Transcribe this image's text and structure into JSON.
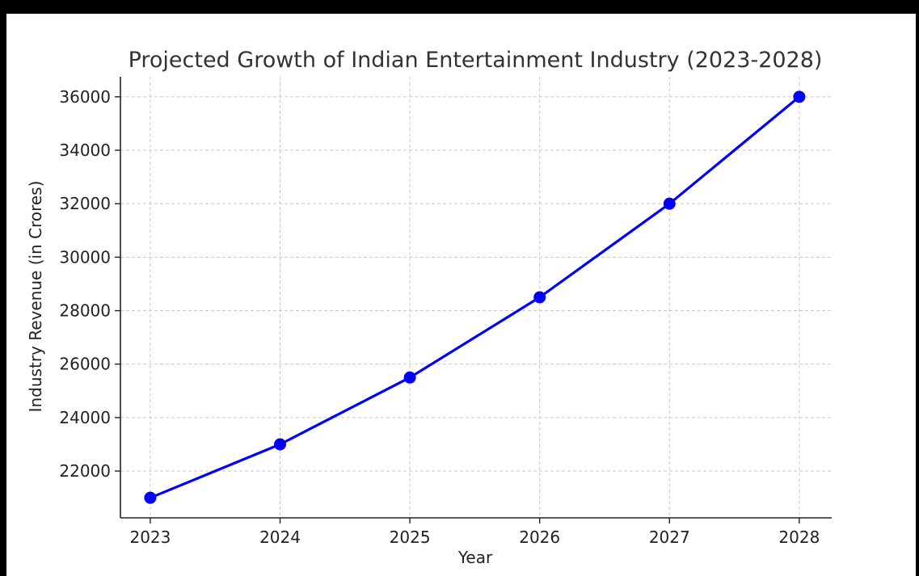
{
  "chart_data": {
    "type": "line",
    "title": "Projected Growth of Indian Entertainment Industry (2023-2028)",
    "xlabel": "Year",
    "ylabel": "Industry Revenue (in Crores)",
    "x": [
      2023,
      2024,
      2025,
      2026,
      2027,
      2028
    ],
    "series": [
      {
        "values": [
          21000,
          23000,
          25500,
          28500,
          32000,
          36000
        ],
        "color": "#0000ff"
      }
    ],
    "yticks": [
      22000,
      24000,
      26000,
      28000,
      30000,
      32000,
      34000,
      36000
    ],
    "xlim": [
      2022.77,
      2028.25
    ],
    "ylim": [
      20250,
      36750
    ],
    "grid": true,
    "legend": "none"
  }
}
